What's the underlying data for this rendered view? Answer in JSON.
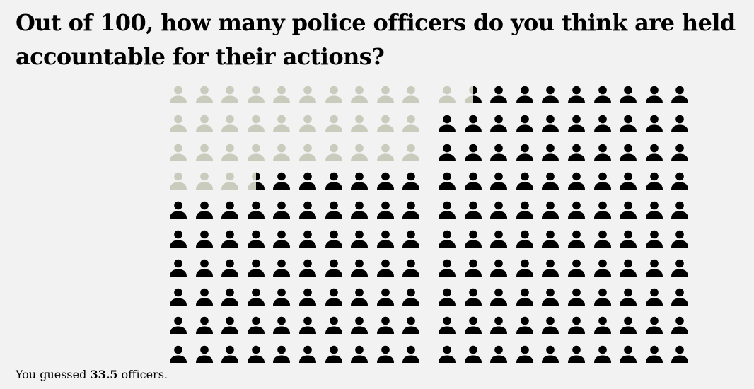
{
  "question": "Out of 100, how many police officers do you think are held accountable for their actions?",
  "result": {
    "prefix": "You guessed ",
    "value": "33.5",
    "suffix": " officers."
  },
  "colors": {
    "filled": "#000000",
    "empty": "#c9ccbc",
    "background": "#f2f2f2"
  },
  "chart_data": [
    {
      "type": "pictograph",
      "icon": "person-icon",
      "total": 100,
      "columns": 10,
      "rows": 10,
      "filled_value": 66.5,
      "empty_value": 33.5,
      "fill_order": "bottom-up"
    },
    {
      "type": "pictograph",
      "icon": "person-icon",
      "total": 100,
      "columns": 10,
      "rows": 10,
      "filled_value": 98.5,
      "empty_value": 1.5,
      "fill_order": "bottom-up"
    }
  ]
}
